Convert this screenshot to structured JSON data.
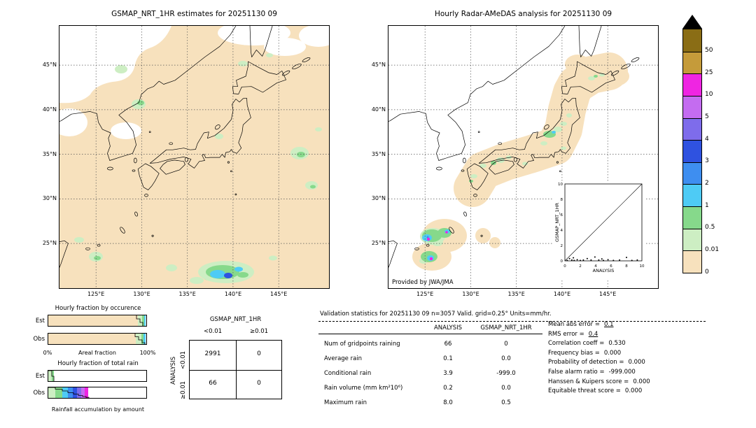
{
  "maps": {
    "left": {
      "title": "GSMAP_NRT_1HR estimates for 20251130 09"
    },
    "right": {
      "title": "Hourly Radar-AMeDAS analysis for 20251130 09",
      "credit": "Provided by JWA/JMA"
    },
    "lat_ticks": [
      "45°N",
      "40°N",
      "35°N",
      "30°N",
      "25°N"
    ],
    "lon_ticks": [
      "125°E",
      "130°E",
      "135°E",
      "140°E",
      "145°E"
    ]
  },
  "colorbar": {
    "ticks": [
      "50",
      "25",
      "10",
      "5",
      "4",
      "3",
      "2",
      "1",
      "0.5",
      "0.01",
      "0"
    ],
    "colors": [
      "#8a6d15",
      "#c59b3a",
      "#ef25e2",
      "#c46cf0",
      "#7e6ceb",
      "#2f52e0",
      "#3e8ef0",
      "#4ecbf5",
      "#86d98b",
      "#cdeec3",
      "#f7e1bd"
    ],
    "over_color": "#000000"
  },
  "inset": {
    "xlabel": "ANALYSIS",
    "ylabel": "GSMAP_NRT_1HR"
  },
  "fractions": {
    "occurrence_title": "Hourly fraction by occurence",
    "total_title": "Hourly fraction of total rain",
    "est_label": "Est",
    "obs_label": "Obs",
    "x_min_label": "0%",
    "x_max_label": "100%",
    "x_axis_label": "Areal fraction",
    "bottom_label": "Rainfall accumulation by amount"
  },
  "contingency": {
    "col_header": "GSMAP_NRT_1HR",
    "row_header": "ANALYSIS",
    "col_labels": [
      "<0.01",
      "≥0.01"
    ],
    "row_labels": [
      "<0.01",
      "≥0.01"
    ],
    "values": [
      [
        "2991",
        "0"
      ],
      [
        "66",
        "0"
      ]
    ]
  },
  "stats": {
    "title": "Validation statistics for 20251130 09  n=3057 Valid. grid=0.25° Units=mm/hr.",
    "col_analysis": "ANALYSIS",
    "col_gsmap": "GSMAP_NRT_1HR",
    "rows": [
      {
        "label": "Num of gridpoints raining",
        "analysis": "66",
        "gsmap": "0"
      },
      {
        "label": "Average rain",
        "analysis": "0.1",
        "gsmap": "0.0"
      },
      {
        "label": "Conditional rain",
        "analysis": "3.9",
        "gsmap": "-999.0"
      },
      {
        "label": "Rain volume (mm km²10⁶)",
        "analysis": "0.2",
        "gsmap": "0.0"
      },
      {
        "label": "Maximum rain",
        "analysis": "8.0",
        "gsmap": "0.5"
      }
    ],
    "scores": [
      {
        "label": "Mean abs error =",
        "value": "0.1",
        "underline": true
      },
      {
        "label": "RMS error =",
        "value": "0.4",
        "underline": true
      },
      {
        "label": "Correlation coeff =",
        "value": "0.530"
      },
      {
        "label": "Frequency bias =",
        "value": "0.000"
      },
      {
        "label": "Probability of detection =",
        "value": "0.000"
      },
      {
        "label": "False alarm ratio =",
        "value": "-999.000"
      },
      {
        "label": "Hanssen & Kuipers score =",
        "value": "0.000"
      },
      {
        "label": "Equitable threat score =",
        "value": "0.000"
      }
    ]
  },
  "chart_data": [
    {
      "type": "heatmap",
      "name": "gsmap_estimate_map",
      "title": "GSMAP_NRT_1HR estimates for 20251130 09",
      "x_ticks": [
        "125°E",
        "130°E",
        "135°E",
        "140°E",
        "145°E"
      ],
      "y_ticks": [
        "45°N",
        "40°N",
        "35°N",
        "30°N",
        "25°N"
      ],
      "xlim_deg_e": [
        121,
        150.5
      ],
      "ylim_deg_n": [
        20,
        49.5
      ],
      "units": "mm/hr",
      "description": "Satellite precipitation estimates: mostly 0-0.01 mm/hr (peach) over the whole domain, white zero patches to the northwest, light rain cells (0.01-2 mm/hr, greens/cyan) scattered south of Japan and at low latitudes"
    },
    {
      "type": "heatmap",
      "name": "radar_amedas_map",
      "title": "Hourly Radar-AMeDAS analysis for 20251130 09",
      "credit": "Provided by JWA/JMA",
      "x_ticks": [
        "125°E",
        "130°E",
        "135°E",
        "140°E",
        "145°E"
      ],
      "y_ticks": [
        "45°N",
        "40°N",
        "35°N",
        "30°N",
        "25°N"
      ],
      "xlim_deg_e": [
        121,
        150.5
      ],
      "ylim_deg_n": [
        20,
        49.5
      ],
      "units": "mm/hr",
      "description": "Radar analysis coverage (0-0.01 mm/hr, peach) along the Japanese archipelago and Okinawa; light-to-moderate rain cells (greens, cyan, magenta up to ~8 mm/hr) near the Ryukyu islands and central Honshu"
    },
    {
      "type": "scatter",
      "name": "inset_scatter",
      "xlabel": "ANALYSIS",
      "ylabel": "GSMAP_NRT_1HR",
      "xlim": [
        0,
        10
      ],
      "ylim": [
        0,
        10
      ],
      "x_ticks": [
        0,
        2,
        4,
        6,
        8,
        10
      ],
      "y_ticks": [
        0,
        2,
        4,
        6,
        8,
        10
      ],
      "diagonal": true,
      "points": [
        [
          0.3,
          0.05
        ],
        [
          0.6,
          0.3
        ],
        [
          0.9,
          0.1
        ],
        [
          1.1,
          0.4
        ],
        [
          1.2,
          0.05
        ],
        [
          1.6,
          0.15
        ],
        [
          2.0,
          0.05
        ],
        [
          2.4,
          0.1
        ],
        [
          2.9,
          0.3
        ],
        [
          3.4,
          0.1
        ],
        [
          3.9,
          0.5
        ],
        [
          4.4,
          0.1
        ],
        [
          4.8,
          0.25
        ],
        [
          5.0,
          0.05
        ],
        [
          5.6,
          0.15
        ],
        [
          6.3,
          0.05
        ],
        [
          7.1,
          0.1
        ],
        [
          8.0,
          0.45
        ],
        [
          8.7,
          0.05
        ],
        [
          9.4,
          0.1
        ]
      ]
    },
    {
      "type": "bar",
      "name": "colorbar_scale",
      "orientation": "vertical",
      "levels_mm_hr": [
        0,
        0.01,
        0.5,
        1,
        2,
        3,
        4,
        5,
        10,
        25,
        50
      ],
      "cell_colors_top_to_bottom": [
        "#8a6d15",
        "#c59b3a",
        "#ef25e2",
        "#c46cf0",
        "#7e6ceb",
        "#2f52e0",
        "#3e8ef0",
        "#4ecbf5",
        "#86d98b",
        "#cdeec3",
        "#f7e1bd"
      ],
      "top_pointer_color": "#000000",
      "top_pointer_meaning": "> 50 mm/hr"
    },
    {
      "type": "bar",
      "name": "hourly_fraction_by_occurrence",
      "title": "Hourly fraction by occurence",
      "categories": [
        "Est",
        "Obs"
      ],
      "xlabel": "Areal fraction",
      "xlim_pct": [
        0,
        100
      ],
      "series": [
        {
          "name": "Est",
          "segments": [
            {
              "color": "#f7e1bd",
              "pct": 91.5
            },
            {
              "color": "#cdeec3",
              "pct": 4.5
            },
            {
              "color": "#86d98b",
              "pct": 2.0
            },
            {
              "color": "#4ecbf5",
              "pct": 1.0
            }
          ]
        },
        {
          "name": "Obs",
          "segments": [
            {
              "color": "#f7e1bd",
              "pct": 89.5
            },
            {
              "color": "#cdeec3",
              "pct": 5.5
            },
            {
              "color": "#86d98b",
              "pct": 2.5
            },
            {
              "color": "#4ecbf5",
              "pct": 1.5
            }
          ]
        }
      ]
    },
    {
      "type": "bar",
      "name": "hourly_fraction_of_total_rain",
      "title": "Hourly fraction of total rain",
      "categories": [
        "Est",
        "Obs"
      ],
      "xlabel": "Rainfall accumulation by amount",
      "xlim_pct": [
        0,
        100
      ],
      "series": [
        {
          "name": "Est",
          "segments": [
            {
              "color": "#cdeec3",
              "pct": 3.5
            },
            {
              "color": "#86d98b",
              "pct": 2.0
            }
          ]
        },
        {
          "name": "Obs",
          "segments": [
            {
              "color": "#cdeec3",
              "pct": 7
            },
            {
              "color": "#86d98b",
              "pct": 7
            },
            {
              "color": "#4ecbf5",
              "pct": 6
            },
            {
              "color": "#3e8ef0",
              "pct": 5
            },
            {
              "color": "#2f52e0",
              "pct": 4.5
            },
            {
              "color": "#7e6ceb",
              "pct": 4
            },
            {
              "color": "#c46cf0",
              "pct": 3.5
            },
            {
              "color": "#ef25e2",
              "pct": 3.5
            }
          ]
        }
      ]
    },
    {
      "type": "table",
      "name": "contingency_table",
      "col_header": "GSMAP_NRT_1HR",
      "row_header": "ANALYSIS",
      "col_labels": [
        "<0.01",
        "≥0.01"
      ],
      "row_labels": [
        "<0.01",
        "≥0.01"
      ],
      "values": [
        [
          2991,
          0
        ],
        [
          66,
          0
        ]
      ]
    },
    {
      "type": "table",
      "name": "validation_statistics",
      "title": "Validation statistics for 20251130 09  n=3057 Valid. grid=0.25° Units=mm/hr.",
      "columns": [
        "ANALYSIS",
        "GSMAP_NRT_1HR"
      ],
      "rows": [
        [
          "Num of gridpoints raining",
          66,
          0
        ],
        [
          "Average rain",
          0.1,
          0.0
        ],
        [
          "Conditional rain",
          3.9,
          -999.0
        ],
        [
          "Rain volume (mm km²10⁶)",
          0.2,
          0.0
        ],
        [
          "Maximum rain",
          8.0,
          0.5
        ]
      ],
      "scores": {
        "Mean abs error": 0.1,
        "RMS error": 0.4,
        "Correlation coeff": 0.53,
        "Frequency bias": 0.0,
        "Probability of detection": 0.0,
        "False alarm ratio": -999.0,
        "Hanssen & Kuipers score": 0.0,
        "Equitable threat score": 0.0
      }
    }
  ]
}
